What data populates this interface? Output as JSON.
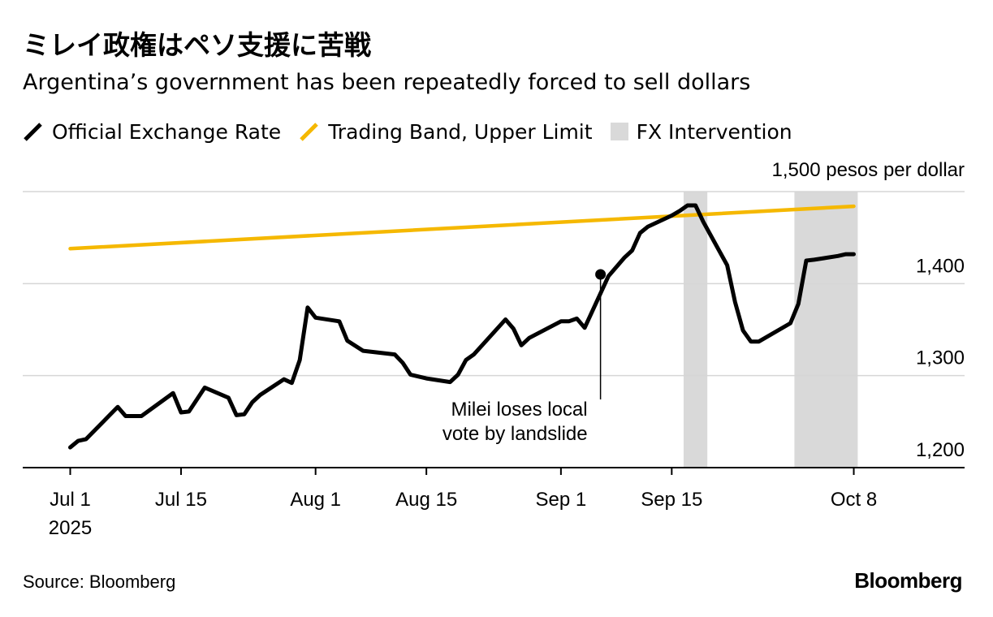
{
  "header": {
    "title": "ミレイ政権はペソ支援に苦戦",
    "subtitle": "Argentina’s government has been repeatedly forced to sell dollars"
  },
  "legend": {
    "items": [
      {
        "label": "Official Exchange Rate",
        "color": "#000000",
        "kind": "line"
      },
      {
        "label": "Trading Band, Upper Limit",
        "color": "#F5B800",
        "kind": "line"
      },
      {
        "label": "FX Intervention",
        "color": "#D9D9D9",
        "kind": "box"
      }
    ]
  },
  "footer": {
    "source": "Source: Bloomberg",
    "brand": "Bloomberg"
  },
  "chart_data": {
    "type": "line",
    "unit_label": "1,500 pesos per dollar",
    "y_ticks": [
      1200,
      1300,
      1400,
      1500
    ],
    "y_tick_labels": [
      "1,200",
      "1,300",
      "1,400",
      ""
    ],
    "ylim": [
      1200,
      1500
    ],
    "x_ticks": [
      {
        "date": "2025-07-01",
        "label": "Jul 1",
        "sublabel": "2025"
      },
      {
        "date": "2025-07-15",
        "label": "Jul 15",
        "sublabel": ""
      },
      {
        "date": "2025-08-01",
        "label": "Aug 1",
        "sublabel": ""
      },
      {
        "date": "2025-08-15",
        "label": "Aug 15",
        "sublabel": ""
      },
      {
        "date": "2025-09-01",
        "label": "Sep 1",
        "sublabel": ""
      },
      {
        "date": "2025-09-15",
        "label": "Sep 15",
        "sublabel": ""
      },
      {
        "date": "2025-10-08",
        "label": "Oct 8",
        "sublabel": ""
      }
    ],
    "xlim": [
      "2025-06-25",
      "2025-10-22"
    ],
    "grid": true,
    "series": [
      {
        "name": "Official Exchange Rate",
        "color": "#000000",
        "points": [
          [
            "2025-07-01",
            1222
          ],
          [
            "2025-07-02",
            1229
          ],
          [
            "2025-07-03",
            1231
          ],
          [
            "2025-07-07",
            1266
          ],
          [
            "2025-07-08",
            1256
          ],
          [
            "2025-07-10",
            1256
          ],
          [
            "2025-07-14",
            1281
          ],
          [
            "2025-07-15",
            1260
          ],
          [
            "2025-07-16",
            1261
          ],
          [
            "2025-07-18",
            1287
          ],
          [
            "2025-07-21",
            1276
          ],
          [
            "2025-07-22",
            1257
          ],
          [
            "2025-07-23",
            1258
          ],
          [
            "2025-07-24",
            1271
          ],
          [
            "2025-07-25",
            1279
          ],
          [
            "2025-07-28",
            1296
          ],
          [
            "2025-07-29",
            1292
          ],
          [
            "2025-07-30",
            1317
          ],
          [
            "2025-07-31",
            1374
          ],
          [
            "2025-08-01",
            1363
          ],
          [
            "2025-08-04",
            1359
          ],
          [
            "2025-08-05",
            1338
          ],
          [
            "2025-08-07",
            1327
          ],
          [
            "2025-08-11",
            1323
          ],
          [
            "2025-08-12",
            1314
          ],
          [
            "2025-08-13",
            1301
          ],
          [
            "2025-08-15",
            1297
          ],
          [
            "2025-08-18",
            1293
          ],
          [
            "2025-08-19",
            1301
          ],
          [
            "2025-08-20",
            1317
          ],
          [
            "2025-08-21",
            1323
          ],
          [
            "2025-08-25",
            1361
          ],
          [
            "2025-08-26",
            1351
          ],
          [
            "2025-08-27",
            1333
          ],
          [
            "2025-08-28",
            1341
          ],
          [
            "2025-09-01",
            1359
          ],
          [
            "2025-09-02",
            1359
          ],
          [
            "2025-09-03",
            1362
          ],
          [
            "2025-09-04",
            1352
          ],
          [
            "2025-09-07",
            1408
          ],
          [
            "2025-09-08",
            1418
          ],
          [
            "2025-09-09",
            1428
          ],
          [
            "2025-09-10",
            1436
          ],
          [
            "2025-09-11",
            1455
          ],
          [
            "2025-09-12",
            1462
          ],
          [
            "2025-09-15",
            1474
          ],
          [
            "2025-09-16",
            1479
          ],
          [
            "2025-09-17",
            1485
          ],
          [
            "2025-09-18",
            1485
          ],
          [
            "2025-09-19",
            1467
          ],
          [
            "2025-09-22",
            1420
          ],
          [
            "2025-09-23",
            1380
          ],
          [
            "2025-09-24",
            1349
          ],
          [
            "2025-09-25",
            1337
          ],
          [
            "2025-09-26",
            1337
          ],
          [
            "2025-09-30",
            1357
          ],
          [
            "2025-10-01",
            1378
          ],
          [
            "2025-10-02",
            1425
          ],
          [
            "2025-10-03",
            1426
          ],
          [
            "2025-10-06",
            1430
          ],
          [
            "2025-10-07",
            1432
          ],
          [
            "2025-10-08",
            1432
          ]
        ]
      },
      {
        "name": "Trading Band, Upper Limit",
        "color": "#F5B800",
        "points": [
          [
            "2025-07-01",
            1438
          ],
          [
            "2025-10-08",
            1484
          ]
        ]
      }
    ],
    "shaded_ranges": [
      {
        "start": "2025-09-17",
        "end": "2025-09-19"
      },
      {
        "start": "2025-10-01",
        "end": "2025-10-08"
      }
    ],
    "annotation": {
      "date": "2025-09-06",
      "value": 1410,
      "text_lines": [
        "Milei loses local",
        "vote by landslide"
      ]
    }
  }
}
